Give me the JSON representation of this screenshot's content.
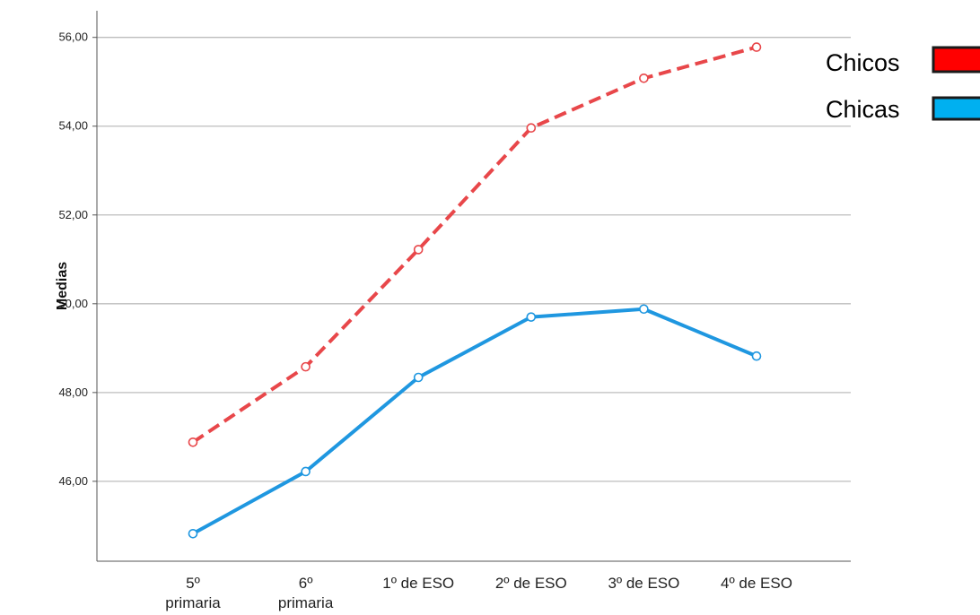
{
  "chart_data": {
    "type": "line",
    "categories": [
      [
        "5º",
        "primaria"
      ],
      [
        "6º",
        "primaria"
      ],
      [
        "1º de ESO"
      ],
      [
        "2º de ESO"
      ],
      [
        "3º de ESO"
      ],
      [
        "4º de ESO"
      ]
    ],
    "series": [
      {
        "name": "Chicos",
        "values": [
          46.88,
          48.58,
          51.22,
          53.96,
          55.08,
          55.78
        ],
        "color": "#e8474a",
        "style": "dashed",
        "legend_color": "#ff0000"
      },
      {
        "name": "Chicas",
        "values": [
          44.82,
          46.22,
          48.34,
          49.7,
          49.88,
          48.82
        ],
        "color": "#1f97e0",
        "style": "solid",
        "legend_color": "#00b0f0"
      }
    ],
    "yticks": [
      "46,00",
      "48,00",
      "50,00",
      "52,00",
      "54,00",
      "56,00"
    ],
    "ytick_values": [
      46,
      48,
      50,
      52,
      54,
      56
    ],
    "ylabel": "Medias",
    "xlabel": "",
    "ylim": [
      44.2,
      56.6
    ],
    "grid": true,
    "legend_position": "top-right"
  }
}
